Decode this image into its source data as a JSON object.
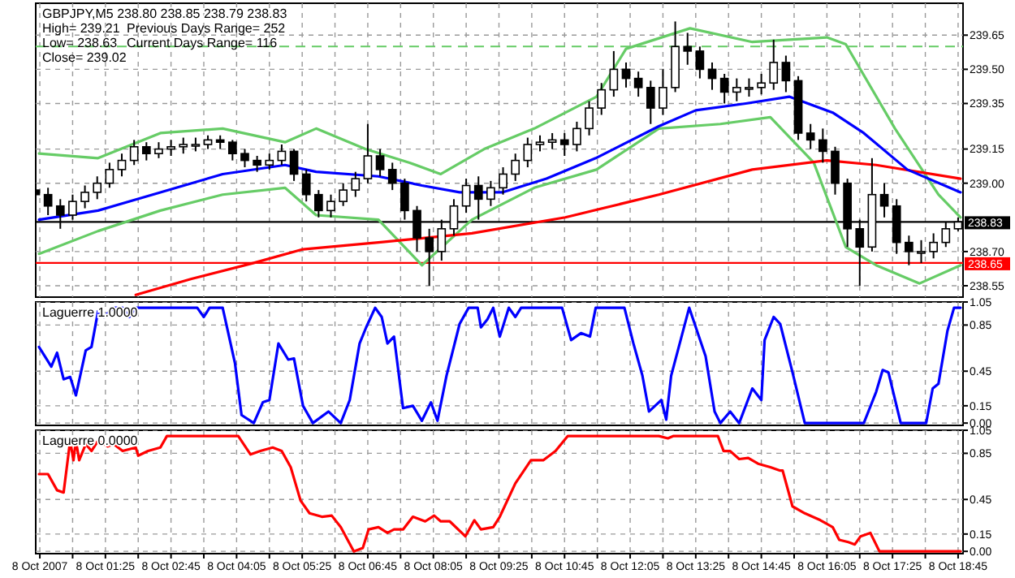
{
  "chart_data": [
    {
      "type": "candlestick",
      "title": "GBPJPY,M5  238.80 238.85 238.79 238.83",
      "annotations": [
        "High= 239.21",
        "Previous Days Range= 252",
        "Low= 238.63",
        "Current Days Range= 116",
        "Close= 239.02"
      ],
      "x": [
        "2007-10-08T00:00",
        "2007-10-08T00:15",
        "2007-10-08T00:30",
        "2007-10-08T00:45",
        "2007-10-08T01:00",
        "2007-10-08T01:15",
        "2007-10-08T01:30",
        "2007-10-08T01:45",
        "2007-10-08T02:00",
        "2007-10-08T02:15",
        "2007-10-08T02:30",
        "2007-10-08T02:45",
        "2007-10-08T03:00",
        "2007-10-08T03:15",
        "2007-10-08T03:30",
        "2007-10-08T03:45",
        "2007-10-08T04:00",
        "2007-10-08T04:15",
        "2007-10-08T04:30",
        "2007-10-08T04:45",
        "2007-10-08T05:00",
        "2007-10-08T05:15",
        "2007-10-08T05:30",
        "2007-10-08T05:45",
        "2007-10-08T06:00",
        "2007-10-08T06:15",
        "2007-10-08T06:30",
        "2007-10-08T06:45",
        "2007-10-08T07:00",
        "2007-10-08T07:15",
        "2007-10-08T07:30",
        "2007-10-08T07:45",
        "2007-10-08T08:00",
        "2007-10-08T08:15",
        "2007-10-08T08:30",
        "2007-10-08T08:45",
        "2007-10-08T09:00",
        "2007-10-08T09:15",
        "2007-10-08T09:30",
        "2007-10-08T09:45",
        "2007-10-08T10:00",
        "2007-10-08T10:15",
        "2007-10-08T10:30",
        "2007-10-08T10:45",
        "2007-10-08T11:00",
        "2007-10-08T11:15",
        "2007-10-08T11:30",
        "2007-10-08T11:45",
        "2007-10-08T12:00",
        "2007-10-08T12:15",
        "2007-10-08T12:30",
        "2007-10-08T12:45",
        "2007-10-08T13:00",
        "2007-10-08T13:15",
        "2007-10-08T13:30",
        "2007-10-08T13:45",
        "2007-10-08T14:00",
        "2007-10-08T14:15",
        "2007-10-08T14:30",
        "2007-10-08T14:45",
        "2007-10-08T15:00",
        "2007-10-08T15:15",
        "2007-10-08T15:30",
        "2007-10-08T15:45",
        "2007-10-08T16:00",
        "2007-10-08T16:15",
        "2007-10-08T16:30",
        "2007-10-08T16:45",
        "2007-10-08T17:00",
        "2007-10-08T17:15",
        "2007-10-08T17:30",
        "2007-10-08T17:45",
        "2007-10-08T18:00",
        "2007-10-08T18:15",
        "2007-10-08T18:30",
        "2007-10-08T18:45"
      ],
      "ohlc": [
        [
          238.97,
          239.0,
          238.88,
          238.95
        ],
        [
          238.95,
          238.98,
          238.86,
          238.9
        ],
        [
          238.9,
          238.93,
          238.8,
          238.86
        ],
        [
          238.86,
          238.95,
          238.84,
          238.92
        ],
        [
          238.92,
          238.99,
          238.89,
          238.96
        ],
        [
          238.96,
          239.03,
          238.93,
          239.0
        ],
        [
          239.0,
          239.09,
          238.98,
          239.06
        ],
        [
          239.06,
          239.13,
          239.03,
          239.1
        ],
        [
          239.1,
          239.19,
          239.08,
          239.16
        ],
        [
          239.16,
          239.18,
          239.1,
          239.13
        ],
        [
          239.13,
          239.18,
          239.11,
          239.15
        ],
        [
          239.15,
          239.19,
          239.12,
          239.16
        ],
        [
          239.16,
          239.2,
          239.13,
          239.17
        ],
        [
          239.17,
          239.2,
          239.14,
          239.17
        ],
        [
          239.17,
          239.21,
          239.15,
          239.19
        ],
        [
          239.19,
          239.21,
          239.15,
          239.18
        ],
        [
          239.18,
          239.19,
          239.1,
          239.13
        ],
        [
          239.13,
          239.15,
          239.07,
          239.1
        ],
        [
          239.1,
          239.12,
          239.05,
          239.08
        ],
        [
          239.08,
          239.13,
          239.06,
          239.1
        ],
        [
          239.1,
          239.17,
          239.08,
          239.14
        ],
        [
          239.14,
          239.15,
          239.01,
          239.04
        ],
        [
          239.04,
          239.06,
          238.92,
          238.95
        ],
        [
          238.95,
          238.97,
          238.85,
          238.88
        ],
        [
          238.88,
          238.95,
          238.85,
          238.92
        ],
        [
          238.92,
          239.0,
          238.9,
          238.97
        ],
        [
          238.97,
          239.05,
          238.94,
          239.02
        ],
        [
          239.02,
          239.26,
          239.0,
          239.12
        ],
        [
          239.12,
          239.15,
          239.03,
          239.06
        ],
        [
          239.06,
          239.09,
          238.97,
          239.0
        ],
        [
          239.0,
          239.02,
          238.84,
          238.88
        ],
        [
          238.88,
          238.9,
          238.7,
          238.76
        ],
        [
          238.76,
          238.8,
          238.55,
          238.7
        ],
        [
          238.7,
          238.84,
          238.66,
          238.8
        ],
        [
          238.8,
          238.93,
          238.77,
          238.9
        ],
        [
          238.9,
          239.02,
          238.87,
          238.99
        ],
        [
          238.99,
          239.03,
          238.84,
          238.93
        ],
        [
          238.93,
          239.01,
          238.9,
          238.98
        ],
        [
          238.98,
          239.07,
          238.95,
          239.04
        ],
        [
          239.04,
          239.13,
          239.01,
          239.1
        ],
        [
          239.1,
          239.2,
          239.07,
          239.17
        ],
        [
          239.17,
          239.21,
          239.14,
          239.18
        ],
        [
          239.18,
          239.22,
          239.15,
          239.19
        ],
        [
          239.19,
          239.22,
          239.12,
          239.17
        ],
        [
          239.17,
          239.27,
          239.14,
          239.24
        ],
        [
          239.24,
          239.36,
          239.21,
          239.33
        ],
        [
          239.33,
          239.44,
          239.3,
          239.41
        ],
        [
          239.41,
          239.58,
          239.38,
          239.5
        ],
        [
          239.5,
          239.53,
          239.42,
          239.46
        ],
        [
          239.46,
          239.49,
          239.38,
          239.42
        ],
        [
          239.42,
          239.45,
          239.26,
          239.33
        ],
        [
          239.33,
          239.5,
          239.3,
          239.42
        ],
        [
          239.42,
          239.71,
          239.4,
          239.6
        ],
        [
          239.6,
          239.66,
          239.52,
          239.58
        ],
        [
          239.58,
          239.6,
          239.46,
          239.5
        ],
        [
          239.5,
          239.53,
          239.41,
          239.46
        ],
        [
          239.46,
          239.48,
          239.35,
          239.4
        ],
        [
          239.4,
          239.46,
          239.36,
          239.42
        ],
        [
          239.42,
          239.46,
          239.38,
          239.42
        ],
        [
          239.42,
          239.48,
          239.39,
          239.44
        ],
        [
          239.44,
          239.63,
          239.41,
          239.53
        ],
        [
          239.53,
          239.56,
          239.4,
          239.45
        ],
        [
          239.45,
          239.47,
          239.19,
          239.22
        ],
        [
          239.22,
          239.26,
          239.15,
          239.19
        ],
        [
          239.19,
          239.24,
          239.09,
          239.14
        ],
        [
          239.14,
          239.16,
          238.95,
          239.0
        ],
        [
          239.0,
          239.02,
          238.72,
          238.8
        ],
        [
          238.8,
          238.84,
          238.55,
          238.72
        ],
        [
          238.72,
          239.11,
          238.7,
          238.95
        ],
        [
          238.95,
          239.0,
          238.85,
          238.9
        ],
        [
          238.9,
          238.93,
          238.69,
          238.74
        ],
        [
          238.74,
          238.77,
          238.64,
          238.7
        ],
        [
          238.7,
          238.75,
          238.65,
          238.7
        ],
        [
          238.7,
          238.78,
          238.67,
          238.74
        ],
        [
          238.74,
          238.83,
          238.72,
          238.8
        ],
        [
          238.8,
          238.85,
          238.79,
          238.83
        ]
      ],
      "series": [
        {
          "type": "line",
          "color": "#66cc66",
          "x": [
            "2007-10-08T00:04",
            "2007-10-08T01:16",
            "2007-10-08T02:32",
            "2007-10-08T03:48",
            "2007-10-08T05:04",
            "2007-10-08T05:42",
            "2007-10-08T06:42",
            "2007-10-08T07:36",
            "2007-10-08T08:14",
            "2007-10-08T09:07",
            "2007-10-08T10:08",
            "2007-10-08T11:24",
            "2007-10-08T12:00",
            "2007-10-08T13:18",
            "2007-10-08T14:34",
            "2007-10-08T16:05",
            "2007-10-08T16:28",
            "2007-10-08T17:28",
            "2007-10-08T18:21",
            "2007-10-08T18:48"
          ],
          "values": [
            239.13,
            239.11,
            239.22,
            239.24,
            239.18,
            239.24,
            239.15,
            239.09,
            239.04,
            239.15,
            239.24,
            239.38,
            239.59,
            239.68,
            239.62,
            239.64,
            239.61,
            239.24,
            238.95,
            238.85
          ]
        },
        {
          "type": "line",
          "color": "#66cc66",
          "x": [
            "2007-10-08T00:04",
            "2007-10-08T01:16",
            "2007-10-08T02:32",
            "2007-10-08T03:48",
            "2007-10-08T05:04",
            "2007-10-08T05:42",
            "2007-10-08T06:58",
            "2007-10-08T07:51",
            "2007-10-08T08:52",
            "2007-10-08T10:08",
            "2007-10-08T11:24",
            "2007-10-08T12:40",
            "2007-10-08T13:55",
            "2007-10-08T14:56",
            "2007-10-08T15:49",
            "2007-10-08T16:28",
            "2007-10-08T17:05",
            "2007-10-08T17:58",
            "2007-10-08T18:48"
          ],
          "values": [
            238.69,
            238.79,
            238.88,
            238.95,
            238.98,
            238.86,
            238.84,
            238.64,
            238.84,
            238.98,
            239.06,
            239.24,
            239.26,
            239.29,
            239.09,
            238.72,
            238.64,
            238.56,
            238.64
          ]
        },
        {
          "type": "line",
          "color": "#ff0000",
          "x": [
            "2007-10-08T02:02",
            "2007-10-08T03:10",
            "2007-10-08T04:26",
            "2007-10-08T05:26",
            "2007-10-08T06:58",
            "2007-10-08T08:52",
            "2007-10-08T10:46",
            "2007-10-08T12:40",
            "2007-10-08T14:34",
            "2007-10-08T16:05",
            "2007-10-08T17:05",
            "2007-10-08T18:48"
          ],
          "values": [
            238.51,
            238.58,
            238.65,
            238.71,
            238.74,
            238.78,
            238.85,
            238.95,
            239.06,
            239.1,
            239.08,
            239.02
          ]
        },
        {
          "type": "line",
          "color": "#0000ff",
          "x": [
            "2007-10-08T00:04",
            "2007-10-08T01:16",
            "2007-10-08T02:32",
            "2007-10-08T03:48",
            "2007-10-08T05:04",
            "2007-10-08T05:42",
            "2007-10-08T06:58",
            "2007-10-08T07:51",
            "2007-10-08T08:37",
            "2007-10-08T09:29",
            "2007-10-08T10:23",
            "2007-10-08T11:23",
            "2007-10-08T12:40",
            "2007-10-08T13:25",
            "2007-10-08T14:26",
            "2007-10-08T15:19",
            "2007-10-08T16:12",
            "2007-10-08T16:50",
            "2007-10-08T17:43",
            "2007-10-08T18:48"
          ],
          "values": [
            238.84,
            238.88,
            238.96,
            239.04,
            239.08,
            239.05,
            239.03,
            238.99,
            238.96,
            238.96,
            239.02,
            239.11,
            239.25,
            239.32,
            239.35,
            239.38,
            239.31,
            239.22,
            239.06,
            238.96
          ]
        }
      ],
      "ref_lines": [
        {
          "axis": "y",
          "value": 239.6,
          "color": "#66cc66",
          "line_style": "dashed"
        },
        {
          "axis": "y",
          "value": 238.83,
          "label": "238.83",
          "color": "#000000"
        },
        {
          "axis": "y",
          "value": 238.65,
          "label": "238.65",
          "color": "#ff0000"
        }
      ],
      "xlim": [
        "2007-10-08T00:00",
        "2007-10-08T18:51"
      ],
      "xticks": [
        {
          "value": "2007-10-08T00:05",
          "label": null
        },
        {
          "value": "2007-10-08T00:45",
          "label": null
        },
        {
          "value": "2007-10-08T01:25",
          "label": null
        },
        {
          "value": "2007-10-08T02:05",
          "label": null
        },
        {
          "value": "2007-10-08T02:45",
          "label": null
        },
        {
          "value": "2007-10-08T03:25",
          "label": null
        },
        {
          "value": "2007-10-08T04:05",
          "label": null
        },
        {
          "value": "2007-10-08T04:45",
          "label": null
        },
        {
          "value": "2007-10-08T05:25",
          "label": null
        },
        {
          "value": "2007-10-08T06:05",
          "label": null
        },
        {
          "value": "2007-10-08T06:45",
          "label": null
        },
        {
          "value": "2007-10-08T07:25",
          "label": null
        },
        {
          "value": "2007-10-08T08:05",
          "label": null
        },
        {
          "value": "2007-10-08T08:45",
          "label": null
        },
        {
          "value": "2007-10-08T09:25",
          "label": null
        },
        {
          "value": "2007-10-08T10:05",
          "label": null
        },
        {
          "value": "2007-10-08T10:45",
          "label": null
        },
        {
          "value": "2007-10-08T11:25",
          "label": null
        },
        {
          "value": "2007-10-08T12:05",
          "label": null
        },
        {
          "value": "2007-10-08T12:45",
          "label": null
        },
        {
          "value": "2007-10-08T13:25",
          "label": null
        },
        {
          "value": "2007-10-08T14:05",
          "label": null
        },
        {
          "value": "2007-10-08T14:45",
          "label": null
        },
        {
          "value": "2007-10-08T15:25",
          "label": null
        },
        {
          "value": "2007-10-08T16:05",
          "label": null
        },
        {
          "value": "2007-10-08T16:45",
          "label": null
        },
        {
          "value": "2007-10-08T17:25",
          "label": null
        },
        {
          "value": "2007-10-08T18:05",
          "label": null
        },
        {
          "value": "2007-10-08T18:45",
          "label": null
        }
      ],
      "ylim": [
        238.5,
        239.79
      ],
      "yticks": [
        238.55,
        {
          "value": 238.7,
          "label": "238.70"
        },
        {
          "value": 239,
          "label": "239.00"
        },
        239.15,
        239.35,
        {
          "value": 239.5,
          "label": "239.50"
        },
        239.65
      ],
      "grid": true,
      "tick_labels": "y"
    },
    {
      "type": "line",
      "title": "Laguerre 1.0000",
      "series": [
        {
          "color": "#0000ff",
          "x": [
            "2007-10-08T00:04",
            "2007-10-08T00:19",
            "2007-10-08T00:26",
            "2007-10-08T00:34",
            "2007-10-08T00:42",
            "2007-10-08T00:49",
            "2007-10-08T01:01",
            "2007-10-08T01:08",
            "2007-10-08T01:16",
            "2007-10-08T01:23",
            "2007-10-08T01:35",
            "2007-10-08T01:46",
            "2007-10-08T01:54",
            "2007-10-08T02:02",
            "2007-10-08T03:17",
            "2007-10-08T03:25",
            "2007-10-08T03:32",
            "2007-10-08T03:48",
            "2007-10-08T04:03",
            "2007-10-08T04:11",
            "2007-10-08T04:26",
            "2007-10-08T04:37",
            "2007-10-08T04:45",
            "2007-10-08T04:56",
            "2007-10-08T05:08",
            "2007-10-08T05:15",
            "2007-10-08T05:26",
            "2007-10-08T05:38",
            "2007-10-08T05:57",
            "2007-10-08T06:12",
            "2007-10-08T06:23",
            "2007-10-08T06:35",
            "2007-10-08T06:43",
            "2007-10-08T06:54",
            "2007-10-08T07:02",
            "2007-10-08T07:09",
            "2007-10-08T07:17",
            "2007-10-08T07:28",
            "2007-10-08T07:40",
            "2007-10-08T07:51",
            "2007-10-08T08:02",
            "2007-10-08T08:10",
            "2007-10-08T08:21",
            "2007-10-08T08:37",
            "2007-10-08T08:48",
            "2007-10-08T08:59",
            "2007-10-08T09:03",
            "2007-10-08T09:11",
            "2007-10-08T09:18",
            "2007-10-08T09:26",
            "2007-10-08T09:37",
            "2007-10-08T09:45",
            "2007-10-08T09:52",
            "2007-10-08T10:42",
            "2007-10-08T10:53",
            "2007-10-08T11:05",
            "2007-10-08T11:16",
            "2007-10-08T11:23",
            "2007-10-08T11:58",
            "2007-10-08T12:09",
            "2007-10-08T12:20",
            "2007-10-08T12:28",
            "2007-10-08T12:40",
            "2007-10-08T12:43",
            "2007-10-08T12:49",
            "2007-10-08T12:55",
            "2007-10-08T13:17",
            "2007-10-08T13:37",
            "2007-10-08T13:48",
            "2007-10-08T13:55",
            "2007-10-08T14:07",
            "2007-10-08T14:18",
            "2007-10-08T14:34",
            "2007-10-08T14:45",
            "2007-10-08T14:49",
            "2007-10-08T15:00",
            "2007-10-08T15:08",
            "2007-10-08T15:23",
            "2007-10-08T15:38",
            "2007-10-08T16:50",
            "2007-10-08T17:05",
            "2007-10-08T17:13",
            "2007-10-08T17:20",
            "2007-10-08T17:35",
            "2007-10-08T18:06",
            "2007-10-08T18:14",
            "2007-10-08T18:21",
            "2007-10-08T18:32",
            "2007-10-08T18:40",
            "2007-10-08T18:48"
          ],
          "values": [
            0.66,
            0.49,
            0.61,
            0.38,
            0.4,
            0.24,
            0.63,
            0.66,
            0.97,
            0.92,
            1.0,
            1.0,
            0.92,
            1.0,
            1.0,
            0.92,
            1.0,
            1.0,
            0.52,
            0.07,
            0.0,
            0.18,
            0.2,
            0.69,
            0.55,
            0.56,
            0.15,
            0.0,
            0.1,
            0.0,
            0.2,
            0.69,
            0.83,
            1.0,
            0.92,
            0.69,
            0.75,
            0.13,
            0.15,
            0.02,
            0.18,
            0.02,
            0.41,
            0.86,
            1.0,
            1.0,
            0.83,
            0.9,
            1.0,
            0.75,
            1.0,
            0.92,
            1.0,
            1.0,
            0.72,
            0.78,
            0.75,
            1.0,
            1.0,
            0.69,
            0.41,
            0.1,
            0.18,
            0.2,
            0.03,
            0.41,
            1.0,
            0.58,
            0.1,
            0.0,
            0.1,
            0.0,
            0.3,
            0.2,
            0.72,
            0.92,
            0.86,
            0.44,
            0.0,
            0.0,
            0.27,
            0.46,
            0.44,
            0.0,
            0.0,
            0.3,
            0.34,
            0.8,
            1.0,
            1.0
          ]
        }
      ],
      "xlim": [
        "2007-10-08T00:00",
        "2007-10-08T18:51"
      ],
      "xticks": [
        {
          "value": "2007-10-08T00:05",
          "label": null
        },
        {
          "value": "2007-10-08T00:45",
          "label": null
        },
        {
          "value": "2007-10-08T01:25",
          "label": null
        },
        {
          "value": "2007-10-08T02:05",
          "label": null
        },
        {
          "value": "2007-10-08T02:45",
          "label": null
        },
        {
          "value": "2007-10-08T03:25",
          "label": null
        },
        {
          "value": "2007-10-08T04:05",
          "label": null
        },
        {
          "value": "2007-10-08T04:45",
          "label": null
        },
        {
          "value": "2007-10-08T05:25",
          "label": null
        },
        {
          "value": "2007-10-08T06:05",
          "label": null
        },
        {
          "value": "2007-10-08T06:45",
          "label": null
        },
        {
          "value": "2007-10-08T07:25",
          "label": null
        },
        {
          "value": "2007-10-08T08:05",
          "label": null
        },
        {
          "value": "2007-10-08T08:45",
          "label": null
        },
        {
          "value": "2007-10-08T09:25",
          "label": null
        },
        {
          "value": "2007-10-08T10:05",
          "label": null
        },
        {
          "value": "2007-10-08T10:45",
          "label": null
        },
        {
          "value": "2007-10-08T11:25",
          "label": null
        },
        {
          "value": "2007-10-08T12:05",
          "label": null
        },
        {
          "value": "2007-10-08T12:45",
          "label": null
        },
        {
          "value": "2007-10-08T13:25",
          "label": null
        },
        {
          "value": "2007-10-08T14:05",
          "label": null
        },
        {
          "value": "2007-10-08T14:45",
          "label": null
        },
        {
          "value": "2007-10-08T15:25",
          "label": null
        },
        {
          "value": "2007-10-08T16:05",
          "label": null
        },
        {
          "value": "2007-10-08T16:45",
          "label": null
        },
        {
          "value": "2007-10-08T17:25",
          "label": null
        },
        {
          "value": "2007-10-08T18:05",
          "label": null
        },
        {
          "value": "2007-10-08T18:45",
          "label": null
        }
      ],
      "ylim": [
        -0.02,
        1.05
      ],
      "yticks": [
        {
          "value": 0,
          "label": "0.00"
        },
        0.15,
        0.45,
        0.85,
        1.05
      ],
      "grid": true,
      "tick_labels": "y"
    },
    {
      "type": "line",
      "title": "Laguerre 0.0000",
      "series": [
        {
          "color": "#ff0000",
          "x": [
            "2007-10-08T00:04",
            "2007-10-08T00:15",
            "2007-10-08T00:26",
            "2007-10-08T00:34",
            "2007-10-08T00:42",
            "2007-10-08T00:46",
            "2007-10-08T00:49",
            "2007-10-08T00:53",
            "2007-10-08T01:01",
            "2007-10-08T01:08",
            "2007-10-08T01:16",
            "2007-10-08T01:28",
            "2007-10-08T01:35",
            "2007-10-08T01:46",
            "2007-10-08T02:02",
            "2007-10-08T02:05",
            "2007-10-08T02:17",
            "2007-10-08T02:32",
            "2007-10-08T02:40",
            "2007-10-08T04:07",
            "2007-10-08T04:22",
            "2007-10-08T04:34",
            "2007-10-08T04:49",
            "2007-10-08T05:00",
            "2007-10-08T05:11",
            "2007-10-08T05:23",
            "2007-10-08T05:34",
            "2007-10-08T05:49",
            "2007-10-08T06:01",
            "2007-10-08T06:12",
            "2007-10-08T06:28",
            "2007-10-08T06:39",
            "2007-10-08T06:46",
            "2007-10-08T06:58",
            "2007-10-08T07:09",
            "2007-10-08T07:17",
            "2007-10-08T07:28",
            "2007-10-08T07:40",
            "2007-10-08T07:55",
            "2007-10-08T08:06",
            "2007-10-08T08:14",
            "2007-10-08T08:25",
            "2007-10-08T08:44",
            "2007-10-08T08:55",
            "2007-10-08T09:03",
            "2007-10-08T09:18",
            "2007-10-08T09:26",
            "2007-10-08T09:45",
            "2007-10-08T10:04",
            "2007-10-08T10:19",
            "2007-10-08T10:34",
            "2007-10-08T10:49",
            "2007-10-08T12:40",
            "2007-10-08T12:51",
            "2007-10-08T12:58",
            "2007-10-08T13:52",
            "2007-10-08T13:59",
            "2007-10-08T14:07",
            "2007-10-08T14:18",
            "2007-10-08T14:29",
            "2007-10-08T14:41",
            "2007-10-08T14:56",
            "2007-10-08T15:08",
            "2007-10-08T15:11",
            "2007-10-08T15:23",
            "2007-10-08T15:38",
            "2007-10-08T15:57",
            "2007-10-08T16:12",
            "2007-10-08T16:20",
            "2007-10-08T16:31",
            "2007-10-08T16:39",
            "2007-10-08T16:46",
            "2007-10-08T16:58",
            "2007-10-08T17:09",
            "2007-10-08T18:48"
          ],
          "values": [
            0.67,
            0.67,
            0.53,
            0.51,
            0.96,
            0.79,
            0.96,
            0.79,
            0.93,
            0.87,
            0.96,
            0.91,
            0.93,
            0.87,
            0.9,
            0.83,
            0.87,
            0.9,
            1.0,
            1.0,
            0.84,
            0.87,
            0.9,
            0.87,
            0.73,
            0.44,
            0.33,
            0.3,
            0.31,
            0.21,
            0.0,
            0.03,
            0.19,
            0.21,
            0.16,
            0.19,
            0.19,
            0.3,
            0.26,
            0.31,
            0.26,
            0.26,
            0.13,
            0.27,
            0.19,
            0.21,
            0.3,
            0.59,
            0.79,
            0.79,
            0.87,
            1.0,
            1.0,
            0.98,
            1.0,
            1.0,
            0.87,
            0.87,
            0.8,
            0.81,
            0.76,
            0.73,
            0.7,
            0.7,
            0.39,
            0.33,
            0.27,
            0.21,
            0.1,
            0.08,
            0.06,
            0.13,
            0.16,
            0.0,
            0.0
          ]
        }
      ],
      "xlim": [
        "2007-10-08T00:00",
        "2007-10-08T18:51"
      ],
      "xticks": [
        {
          "value": "2007-10-08T00:05",
          "label": "8 Oct 2007"
        },
        {
          "value": "2007-10-08T00:45",
          "label": null
        },
        {
          "value": "2007-10-08T01:25",
          "label": "8 Oct 01:25"
        },
        {
          "value": "2007-10-08T02:05",
          "label": null
        },
        {
          "value": "2007-10-08T02:45",
          "label": "8 Oct 02:45"
        },
        {
          "value": "2007-10-08T03:25",
          "label": null
        },
        {
          "value": "2007-10-08T04:05",
          "label": "8 Oct 04:05"
        },
        {
          "value": "2007-10-08T04:45",
          "label": null
        },
        {
          "value": "2007-10-08T05:25",
          "label": "8 Oct 05:25"
        },
        {
          "value": "2007-10-08T06:05",
          "label": null
        },
        {
          "value": "2007-10-08T06:45",
          "label": "8 Oct 06:45"
        },
        {
          "value": "2007-10-08T07:25",
          "label": null
        },
        {
          "value": "2007-10-08T08:05",
          "label": "8 Oct 08:05"
        },
        {
          "value": "2007-10-08T08:45",
          "label": null
        },
        {
          "value": "2007-10-08T09:25",
          "label": "8 Oct 09:25"
        },
        {
          "value": "2007-10-08T10:05",
          "label": null
        },
        {
          "value": "2007-10-08T10:45",
          "label": "8 Oct 10:45"
        },
        {
          "value": "2007-10-08T11:25",
          "label": null
        },
        {
          "value": "2007-10-08T12:05",
          "label": "8 Oct 12:05"
        },
        {
          "value": "2007-10-08T12:45",
          "label": null
        },
        {
          "value": "2007-10-08T13:25",
          "label": "8 Oct 13:25"
        },
        {
          "value": "2007-10-08T14:05",
          "label": null
        },
        {
          "value": "2007-10-08T14:45",
          "label": "8 Oct 14:45"
        },
        {
          "value": "2007-10-08T15:25",
          "label": null
        },
        {
          "value": "2007-10-08T16:05",
          "label": "8 Oct 16:05"
        },
        {
          "value": "2007-10-08T16:45",
          "label": null
        },
        {
          "value": "2007-10-08T17:25",
          "label": "8 Oct 17:25"
        },
        {
          "value": "2007-10-08T18:05",
          "label": null
        },
        {
          "value": "2007-10-08T18:45",
          "label": "8 Oct 18:45"
        }
      ],
      "ylim": [
        -0.02,
        1.05
      ],
      "yticks": [
        {
          "value": 0,
          "label": "0.00"
        },
        0.15,
        0.45,
        0.85,
        1.05
      ],
      "grid": true
    }
  ]
}
